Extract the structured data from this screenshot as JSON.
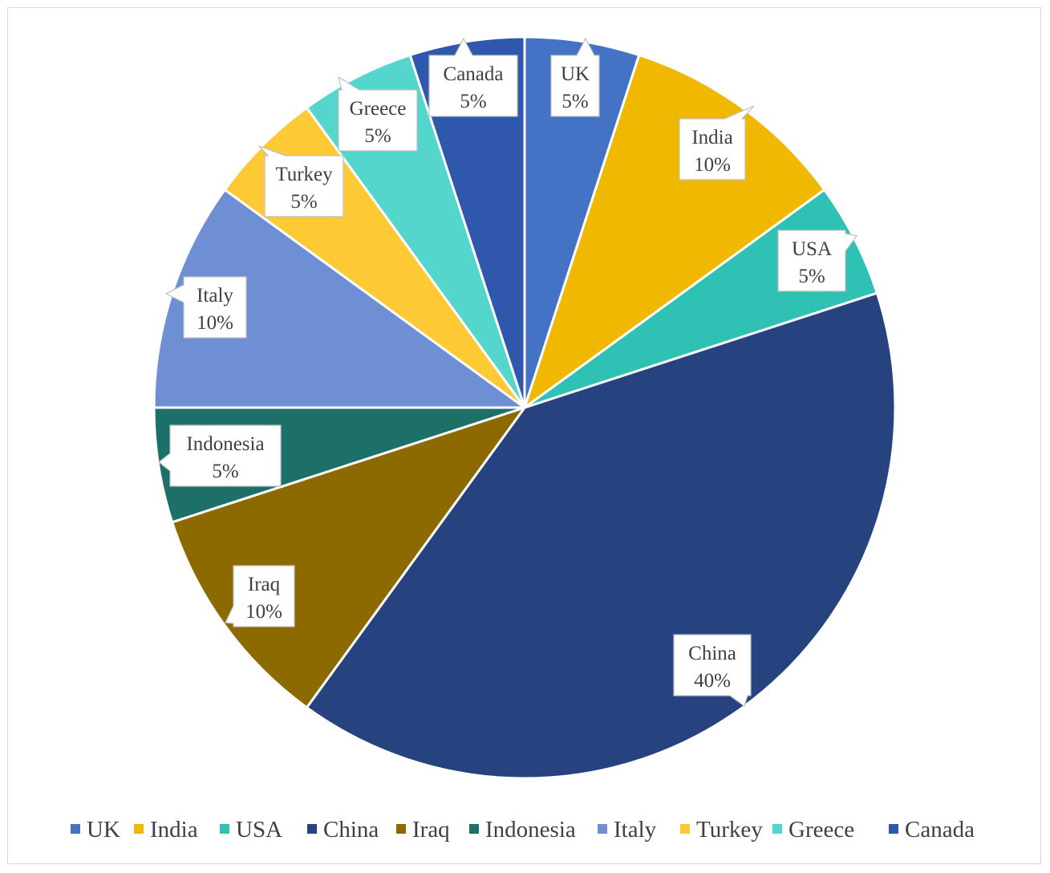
{
  "chart_data": {
    "type": "pie",
    "title": "",
    "legend_position": "bottom",
    "start_angle_deg": 0,
    "direction": "clockwise",
    "slices": [
      {
        "name": "UK",
        "value": 5,
        "label": "5%",
        "color": "#4472c4"
      },
      {
        "name": "India",
        "value": 10,
        "label": "10%",
        "color": "#f0b800"
      },
      {
        "name": "USA",
        "value": 5,
        "label": "5%",
        "color": "#2fc2b4"
      },
      {
        "name": "China",
        "value": 40,
        "label": "40%",
        "color": "#264380"
      },
      {
        "name": "Iraq",
        "value": 10,
        "label": "10%",
        "color": "#8c6a00"
      },
      {
        "name": "Indonesia",
        "value": 5,
        "label": "5%",
        "color": "#1c7068"
      },
      {
        "name": "Italy",
        "value": 10,
        "label": "10%",
        "color": "#6f8fd5"
      },
      {
        "name": "Turkey",
        "value": 5,
        "label": "5%",
        "color": "#fdca35"
      },
      {
        "name": "Greece",
        "value": 5,
        "label": "5%",
        "color": "#55d6cc"
      },
      {
        "name": "Canada",
        "value": 5,
        "label": "5%",
        "color": "#2f58ac"
      }
    ]
  }
}
